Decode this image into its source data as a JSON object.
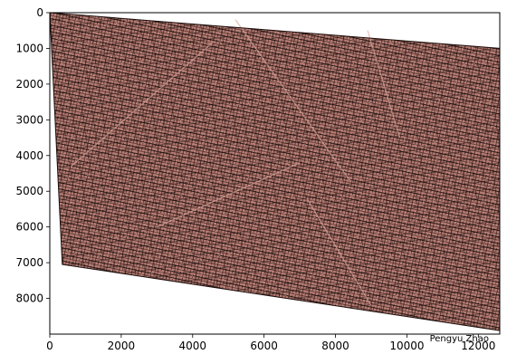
{
  "figure": {
    "credit": "Pengyu  Zhao",
    "image": {
      "description_name": "aerial-city-edge-map",
      "fill_color": "#b77e76",
      "line_color": "#1a0d0a",
      "extent_x": [
        0,
        12600
      ],
      "extent_y": [
        0,
        9000
      ],
      "corners": [
        [
          0,
          0
        ],
        [
          12600,
          1000
        ],
        [
          12600,
          8900
        ],
        [
          350,
          7050
        ]
      ]
    },
    "x_axis": {
      "range": [
        0,
        12600
      ],
      "ticks": [
        0,
        2000,
        4000,
        6000,
        8000,
        10000,
        12000
      ],
      "tick_labels": [
        "0",
        "2000",
        "4000",
        "6000",
        "8000",
        "10000",
        "12000"
      ]
    },
    "y_axis": {
      "range": [
        0,
        9000
      ],
      "inverted": true,
      "ticks": [
        0,
        1000,
        2000,
        3000,
        4000,
        5000,
        6000,
        7000,
        8000
      ],
      "tick_labels": [
        "0",
        "1000",
        "2000",
        "3000",
        "4000",
        "5000",
        "6000",
        "7000",
        "8000"
      ]
    }
  }
}
